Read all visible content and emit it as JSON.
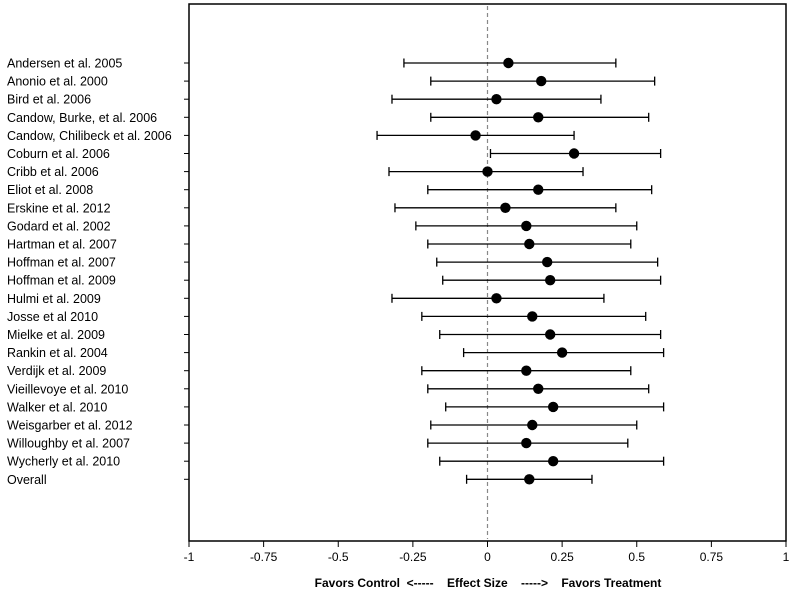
{
  "chart_data": {
    "type": "forest",
    "xlabel": "Favors Control  <-----    Effect Size    ----->    Favors Treatment",
    "xlim": [
      -1,
      1
    ],
    "x_ticks": [
      "-1",
      "-0.75",
      "-0.5",
      "-0.25",
      "0",
      "0.25",
      "0.5",
      "0.75",
      "1"
    ],
    "x_tick_values": [
      -1,
      -0.75,
      -0.5,
      -0.25,
      0,
      0.25,
      0.5,
      0.75,
      1
    ],
    "reference_line": 0,
    "studies": [
      {
        "label": "Andersen et al. 2005",
        "estimate": 0.07,
        "lower": -0.28,
        "upper": 0.43
      },
      {
        "label": "Anonio et al. 2000",
        "estimate": 0.18,
        "lower": -0.19,
        "upper": 0.56
      },
      {
        "label": "Bird et al. 2006",
        "estimate": 0.03,
        "lower": -0.32,
        "upper": 0.38
      },
      {
        "label": "Candow, Burke, et al. 2006",
        "estimate": 0.17,
        "lower": -0.19,
        "upper": 0.54
      },
      {
        "label": "Candow, Chilibeck et al. 2006",
        "estimate": -0.04,
        "lower": -0.37,
        "upper": 0.29
      },
      {
        "label": "Coburn et al. 2006",
        "estimate": 0.29,
        "lower": 0.01,
        "upper": 0.58
      },
      {
        "label": "Cribb et al. 2006",
        "estimate": 0.0,
        "lower": -0.33,
        "upper": 0.32
      },
      {
        "label": "Eliot et al. 2008",
        "estimate": 0.17,
        "lower": -0.2,
        "upper": 0.55
      },
      {
        "label": "Erskine et al. 2012",
        "estimate": 0.06,
        "lower": -0.31,
        "upper": 0.43
      },
      {
        "label": "Godard et al.  2002",
        "estimate": 0.13,
        "lower": -0.24,
        "upper": 0.5
      },
      {
        "label": "Hartman et al. 2007",
        "estimate": 0.14,
        "lower": -0.2,
        "upper": 0.48
      },
      {
        "label": "Hoffman et al. 2007",
        "estimate": 0.2,
        "lower": -0.17,
        "upper": 0.57
      },
      {
        "label": "Hoffman et al. 2009",
        "estimate": 0.21,
        "lower": -0.15,
        "upper": 0.58
      },
      {
        "label": "Hulmi et al. 2009",
        "estimate": 0.03,
        "lower": -0.32,
        "upper": 0.39
      },
      {
        "label": "Josse et al 2010",
        "estimate": 0.15,
        "lower": -0.22,
        "upper": 0.53
      },
      {
        "label": "Mielke et al. 2009",
        "estimate": 0.21,
        "lower": -0.16,
        "upper": 0.58
      },
      {
        "label": "Rankin et al. 2004",
        "estimate": 0.25,
        "lower": -0.08,
        "upper": 0.59
      },
      {
        "label": "Verdijk et al. 2009",
        "estimate": 0.13,
        "lower": -0.22,
        "upper": 0.48
      },
      {
        "label": "Vieillevoye et al. 2010",
        "estimate": 0.17,
        "lower": -0.2,
        "upper": 0.54
      },
      {
        "label": "Walker et al. 2010",
        "estimate": 0.22,
        "lower": -0.14,
        "upper": 0.59
      },
      {
        "label": "Weisgarber et al. 2012",
        "estimate": 0.15,
        "lower": -0.19,
        "upper": 0.5
      },
      {
        "label": "Willoughby et al. 2007",
        "estimate": 0.13,
        "lower": -0.2,
        "upper": 0.47
      },
      {
        "label": "Wycherly et al. 2010",
        "estimate": 0.22,
        "lower": -0.16,
        "upper": 0.59
      },
      {
        "label": "Overall",
        "estimate": 0.14,
        "lower": -0.07,
        "upper": 0.35
      }
    ],
    "grid": false,
    "colors": {
      "marker": "#000000",
      "line": "#000000",
      "reference": "#888888"
    }
  }
}
